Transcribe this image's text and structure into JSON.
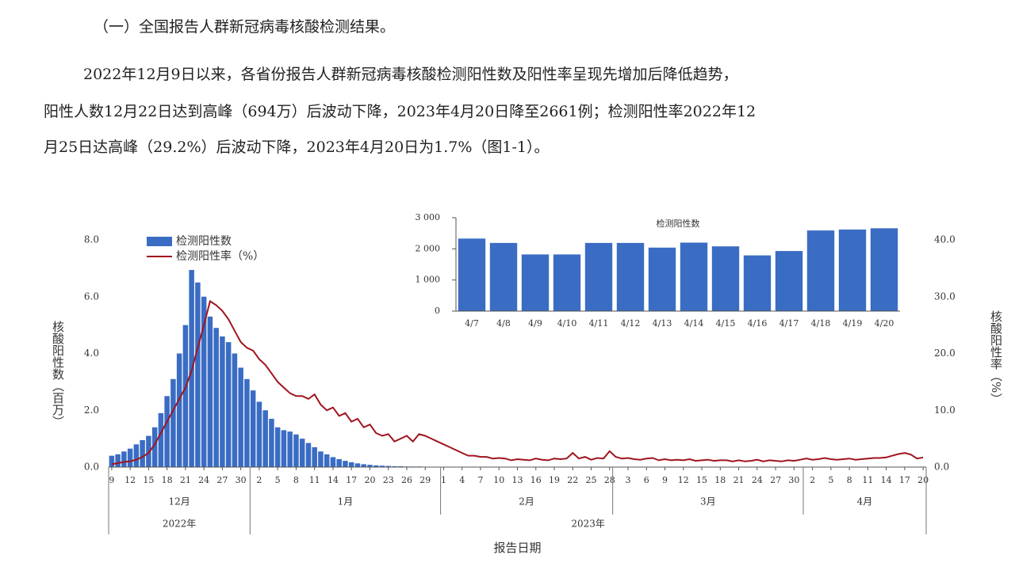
{
  "document": {
    "heading": "（一）全国报告人群新冠病毒核酸检测结果。",
    "paragraph": [
      "2022年12月9日以来，各省份报告人群新冠病毒核酸检测阳性数及阳性率呈现先增加后降低趋势，",
      "阳性人数12月22日达到高峰（694万）后波动下降，2023年4月20日降至2661例；检测阳性率2022年12",
      "月25日达高峰（29.2%）后波动下降，2023年4月20日为1.7%（图1-1）。"
    ]
  },
  "chart_data": [
    {
      "type": "bar",
      "x_label": "报告日期",
      "y_label": "核酸阳性数（百万）",
      "y2_label": "核酸阳性率（%）",
      "months": [
        "12月",
        "1月",
        "2月",
        "3月",
        "4月"
      ],
      "years": [
        "2022年",
        "2023年"
      ],
      "categories": [
        "9",
        null,
        null,
        "12",
        null,
        null,
        "15",
        null,
        null,
        "18",
        null,
        null,
        "21",
        null,
        null,
        "24",
        null,
        null,
        "27",
        null,
        null,
        "30",
        null,
        null,
        "2",
        null,
        null,
        "5",
        null,
        null,
        "8",
        null,
        null,
        "11",
        null,
        null,
        "14",
        null,
        null,
        "17",
        null,
        null,
        "20",
        null,
        null,
        "23",
        null,
        null,
        "26",
        null,
        null,
        "29",
        null,
        null,
        "1",
        null,
        null,
        "4",
        null,
        null,
        "7",
        null,
        null,
        "10",
        null,
        null,
        "13",
        null,
        null,
        "16",
        null,
        null,
        "19",
        null,
        null,
        "22",
        null,
        null,
        "25",
        null,
        null,
        "28",
        null,
        null,
        "3",
        null,
        null,
        "6",
        null,
        null,
        "9",
        null,
        null,
        "12",
        null,
        null,
        "15",
        null,
        null,
        "18",
        null,
        null,
        "21",
        null,
        null,
        "24",
        null,
        null,
        "27",
        null,
        null,
        "30",
        null,
        null,
        "2",
        null,
        null,
        "5",
        null,
        null,
        "8",
        null,
        null,
        "11",
        null,
        null,
        "14",
        null,
        null,
        "17",
        null,
        null,
        "20"
      ],
      "series": [
        {
          "name": "检测阳性数",
          "type": "bar",
          "color": "#3a6cc4",
          "values": [
            0.4,
            0.45,
            0.55,
            0.65,
            0.8,
            0.95,
            1.1,
            1.4,
            1.9,
            2.5,
            3.1,
            4.0,
            5.0,
            6.94,
            6.5,
            6.0,
            5.3,
            4.9,
            4.6,
            4.4,
            4.0,
            3.5,
            3.1,
            2.7,
            2.3,
            2.0,
            1.7,
            1.4,
            1.3,
            1.25,
            1.15,
            1.0,
            0.85,
            0.7,
            0.55,
            0.45,
            0.35,
            0.28,
            0.22,
            0.17,
            0.13,
            0.1,
            0.08,
            0.06,
            0.05,
            0.04,
            0.03,
            0.03,
            0.02,
            0.02,
            0.02,
            0.01,
            0.01,
            0.01,
            0.01,
            0.01,
            0.008,
            0.008,
            0.007,
            0.007,
            0.006,
            0.006,
            0.006,
            0.005,
            0.005,
            0.005,
            0.005,
            0.005,
            0.004,
            0.004,
            0.004,
            0.004,
            0.004,
            0.004,
            0.004,
            0.004,
            0.004,
            0.004,
            0.004,
            0.004,
            0.004,
            0.004,
            0.004,
            0.004,
            0.004,
            0.004,
            0.004,
            0.004,
            0.004,
            0.004,
            0.004,
            0.003,
            0.003,
            0.003,
            0.003,
            0.003,
            0.003,
            0.003,
            0.003,
            0.003,
            0.003,
            0.003,
            0.003,
            0.003,
            0.003,
            0.003,
            0.003,
            0.003,
            0.003,
            0.003,
            0.003,
            0.003,
            0.003,
            0.003,
            0.003,
            0.003,
            0.002,
            0.002,
            0.002,
            0.00233,
            0.00219,
            0.00182,
            0.00182,
            0.00219,
            0.00219,
            0.00204,
            0.0022,
            0.00208,
            0.00179,
            0.00193,
            0.00259,
            0.00262,
            0.002661
          ]
        },
        {
          "name": "检测阳性率（%）",
          "type": "line",
          "color": "#a0141e",
          "axis": "y2",
          "values": [
            0.5,
            0.7,
            0.9,
            1.0,
            1.3,
            1.8,
            2.5,
            4,
            6,
            8,
            10,
            12,
            14,
            17,
            21,
            25,
            29.2,
            28.5,
            27.5,
            26,
            24,
            22,
            21,
            20.5,
            19,
            18,
            16.5,
            15,
            14,
            13,
            12.5,
            12.5,
            12,
            12.8,
            11,
            10,
            10.5,
            9,
            9.5,
            8,
            8.5,
            7,
            7.5,
            6,
            5.5,
            5.8,
            4.5,
            5,
            5.5,
            4.5,
            5.8,
            5.5,
            5,
            4.5,
            4,
            3.5,
            3,
            2.5,
            2,
            2,
            1.8,
            1.8,
            1.5,
            1.6,
            1.5,
            1.2,
            1.4,
            1.3,
            1.2,
            1.5,
            1.3,
            1.2,
            1.5,
            1.4,
            1.5,
            2.5,
            1.5,
            1.8,
            1.3,
            1.6,
            1.5,
            2.8,
            1.8,
            1.5,
            1.6,
            1.4,
            1.3,
            1.5,
            1.6,
            1.2,
            1.4,
            1.2,
            1.3,
            1.2,
            1.4,
            1.1,
            1.2,
            1.3,
            1.1,
            1.2,
            1.2,
            1.0,
            1.2,
            1.0,
            1.1,
            1.3,
            1.0,
            1.2,
            1.1,
            1.0,
            1.2,
            1.1,
            1.3,
            1.5,
            1.3,
            1.4,
            1.6,
            1.4,
            1.3,
            1.4,
            1.5,
            1.3,
            1.4,
            1.5,
            1.6,
            1.6,
            1.7,
            2.0,
            2.3,
            2.5,
            2.2,
            1.5,
            1.7
          ]
        }
      ],
      "ylim": [
        0,
        8
      ],
      "yticks": [
        {
          "value": 0,
          "label": "0.0"
        },
        {
          "value": 2,
          "label": "2.0"
        },
        {
          "value": 4,
          "label": "4.0"
        },
        {
          "value": 6,
          "label": "6.0"
        },
        {
          "value": 8,
          "label": "8.0"
        }
      ],
      "y2lim": [
        0,
        40
      ],
      "y2ticks": [
        {
          "value": 0,
          "label": "0.0"
        },
        {
          "value": 10,
          "label": "10.0"
        },
        {
          "value": 20,
          "label": "20.0"
        },
        {
          "value": 30,
          "label": "30.0"
        },
        {
          "value": 40,
          "label": "40.0"
        }
      ],
      "legend": "upper left"
    },
    {
      "type": "bar",
      "title": "检测阳性数",
      "color": "#3a6cc4",
      "categories": [
        "4/7",
        "4/8",
        "4/9",
        "4/10",
        "4/11",
        "4/12",
        "4/13",
        "4/14",
        "4/15",
        "4/16",
        "4/17",
        "4/18",
        "4/19",
        "4/20"
      ],
      "values": [
        2330,
        2190,
        1820,
        1820,
        2190,
        2190,
        2040,
        2200,
        2080,
        1790,
        1930,
        2590,
        2620,
        2661
      ],
      "ylim": [
        0,
        3000
      ],
      "yticks": [
        0,
        {
          "value": 1000,
          "label": "1 000"
        },
        {
          "value": 2000,
          "label": "2 000"
        },
        {
          "value": 3000,
          "label": "3 000"
        }
      ]
    }
  ]
}
